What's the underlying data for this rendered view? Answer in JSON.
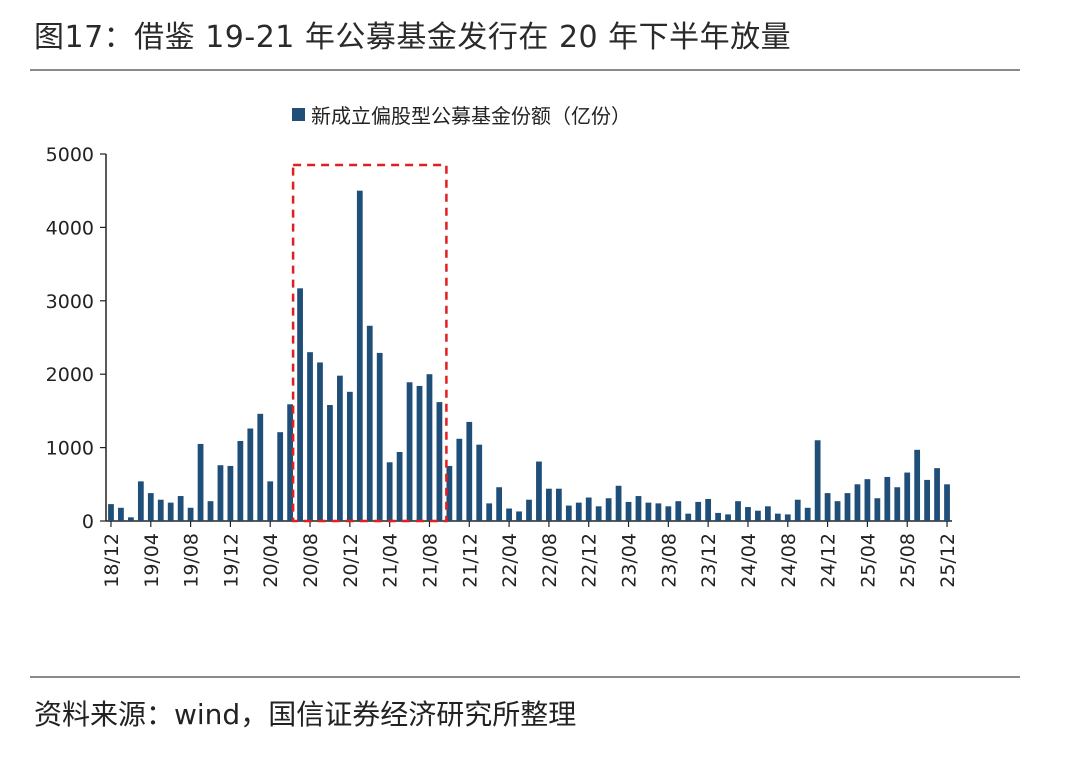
{
  "figure": {
    "title": "图17：借鉴 19-21 年公募基金发行在 20 年下半年放量",
    "source": "资料来源：wind，国信证券经济研究所整理"
  },
  "chart_data": {
    "type": "bar",
    "legend": "新成立偏股型公募基金份额（亿份）",
    "legend_position": "top",
    "ylim": [
      0,
      5000
    ],
    "yticks": [
      0,
      1000,
      2000,
      3000,
      4000,
      5000
    ],
    "grid": false,
    "bar_color": "#1f4e79",
    "highlight_color": "#e02020",
    "highlight_range": [
      "20/07",
      "21/09"
    ],
    "xtick_labels": [
      "18/12",
      "19/04",
      "19/08",
      "19/12",
      "20/04",
      "20/08",
      "20/12",
      "21/04",
      "21/08",
      "21/12",
      "22/04",
      "22/08",
      "22/12",
      "23/04",
      "23/08",
      "23/12",
      "24/04",
      "24/08",
      "24/12",
      "25/04",
      "25/08",
      "25/12"
    ],
    "categories": [
      "18/12",
      "19/01",
      "19/02",
      "19/03",
      "19/04",
      "19/05",
      "19/06",
      "19/07",
      "19/08",
      "19/09",
      "19/10",
      "19/11",
      "19/12",
      "20/01",
      "20/02",
      "20/03",
      "20/04",
      "20/05",
      "20/06",
      "20/07",
      "20/08",
      "20/09",
      "20/10",
      "20/11",
      "20/12",
      "21/01",
      "21/02",
      "21/03",
      "21/04",
      "21/05",
      "21/06",
      "21/07",
      "21/08",
      "21/09",
      "21/10",
      "21/11",
      "21/12",
      "22/01",
      "22/02",
      "22/03",
      "22/04",
      "22/05",
      "22/06",
      "22/07",
      "22/08",
      "22/09",
      "22/10",
      "22/11",
      "22/12",
      "23/01",
      "23/02",
      "23/03",
      "23/04",
      "23/05",
      "23/06",
      "23/07",
      "23/08",
      "23/09",
      "23/10",
      "23/11",
      "23/12",
      "24/01",
      "24/02",
      "24/03",
      "24/04",
      "24/05",
      "24/06",
      "24/07",
      "24/08",
      "24/09",
      "24/10",
      "24/11",
      "24/12",
      "25/01",
      "25/02",
      "25/03",
      "25/04",
      "25/05",
      "25/06",
      "25/07",
      "25/08",
      "25/09",
      "25/10",
      "25/11",
      "25/12"
    ],
    "values": [
      230,
      180,
      50,
      540,
      380,
      290,
      250,
      340,
      180,
      1050,
      270,
      760,
      750,
      1090,
      1260,
      1460,
      540,
      1210,
      1590,
      3170,
      2300,
      2160,
      1580,
      1980,
      1760,
      4500,
      2660,
      2290,
      800,
      940,
      1890,
      1840,
      2000,
      1620,
      750,
      1120,
      1350,
      1040,
      240,
      460,
      170,
      130,
      290,
      810,
      440,
      440,
      210,
      250,
      320,
      200,
      310,
      480,
      260,
      340,
      250,
      240,
      200,
      270,
      100,
      260,
      300,
      110,
      90,
      270,
      190,
      140,
      200,
      100,
      90,
      290,
      180,
      1100,
      380,
      270,
      380,
      500,
      570,
      310,
      600,
      460,
      660,
      970,
      560,
      720,
      500
    ]
  }
}
